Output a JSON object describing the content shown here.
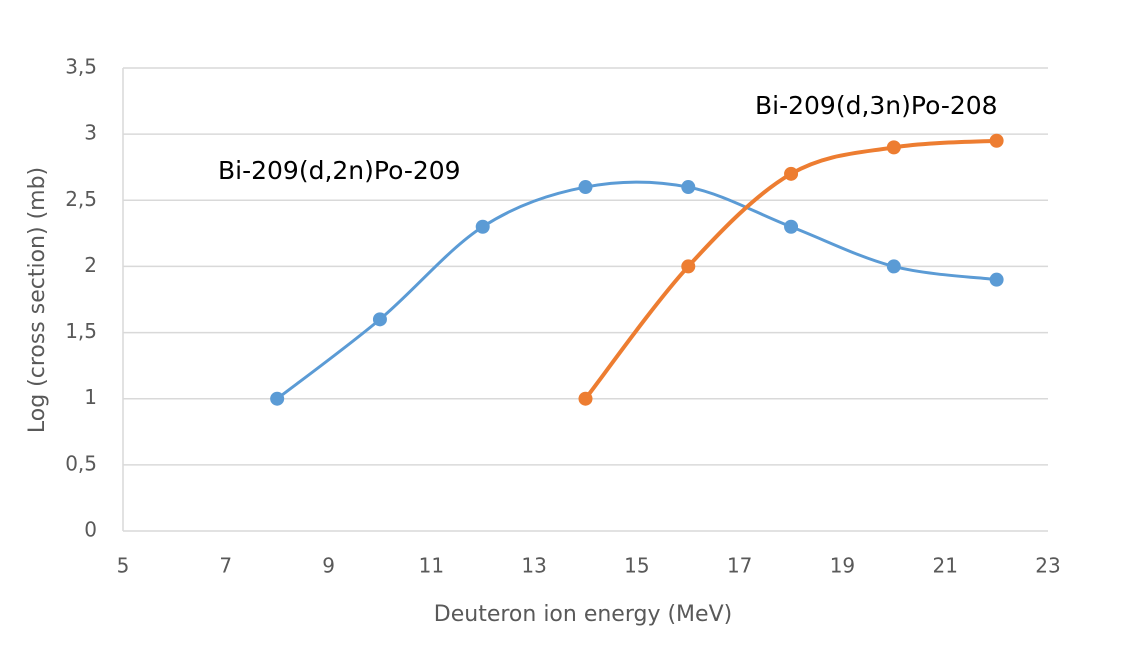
{
  "chart_data": {
    "type": "line",
    "x_label": "Deuteron ion energy (MeV)",
    "y_label": "Log (cross section) (mb)",
    "xlim": [
      5,
      23
    ],
    "xticks": [
      5,
      7,
      9,
      11,
      13,
      15,
      17,
      19,
      21,
      23
    ],
    "ylim": [
      0,
      3.5
    ],
    "yticks": [
      0,
      {
        "value": 0.5,
        "label": "0,5"
      },
      1,
      {
        "value": 1.5,
        "label": "1,5"
      },
      2,
      {
        "value": 2.5,
        "label": "2,5"
      },
      3,
      {
        "value": 3.5,
        "label": "3,5"
      }
    ],
    "grid": true,
    "series": [
      {
        "name": "Bi-209(d,2n)Po-209",
        "color": "#5b9bd5",
        "x": [
          8,
          10,
          12,
          14,
          16,
          18,
          20,
          22
        ],
        "values": [
          1,
          1.6,
          2.3,
          2.6,
          2.6,
          2.3,
          2,
          1.9
        ]
      },
      {
        "name": "Bi-209(d,3n)Po-208",
        "color": "#ed7d31",
        "x": [
          14,
          16,
          18,
          20,
          22
        ],
        "values": [
          1,
          2,
          2.7,
          2.9,
          2.95
        ]
      }
    ]
  }
}
